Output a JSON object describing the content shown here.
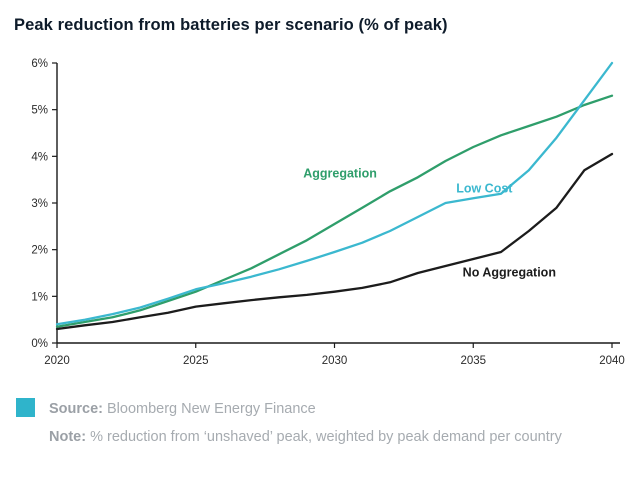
{
  "chart_data": {
    "type": "line",
    "title": "Peak reduction from batteries per scenario (% of peak)",
    "xlabel": "",
    "ylabel": "",
    "x": [
      2020,
      2021,
      2022,
      2023,
      2024,
      2025,
      2026,
      2027,
      2028,
      2029,
      2030,
      2031,
      2032,
      2033,
      2034,
      2035,
      2036,
      2037,
      2038,
      2039,
      2040
    ],
    "series": [
      {
        "name": "Aggregation",
        "color": "#2f9e6b",
        "values": [
          0.35,
          0.45,
          0.55,
          0.7,
          0.9,
          1.1,
          1.35,
          1.6,
          1.9,
          2.2,
          2.55,
          2.9,
          3.25,
          3.55,
          3.9,
          4.2,
          4.45,
          4.65,
          4.85,
          5.1,
          5.3
        ]
      },
      {
        "name": "Low Cost",
        "color": "#3bb8cf",
        "values": [
          0.4,
          0.5,
          0.62,
          0.76,
          0.95,
          1.15,
          1.28,
          1.42,
          1.58,
          1.76,
          1.95,
          2.15,
          2.4,
          2.7,
          3.0,
          3.1,
          3.2,
          3.7,
          4.4,
          5.2,
          6.0
        ]
      },
      {
        "name": "No Aggregation",
        "color": "#1c1c1c",
        "values": [
          0.3,
          0.38,
          0.45,
          0.55,
          0.65,
          0.78,
          0.85,
          0.92,
          0.98,
          1.03,
          1.1,
          1.18,
          1.3,
          1.5,
          1.65,
          1.8,
          1.95,
          2.4,
          2.9,
          3.7,
          4.05
        ]
      }
    ],
    "x_ticks": [
      2020,
      2025,
      2030,
      2035,
      2040
    ],
    "y_ticks": [
      "0%",
      "1%",
      "2%",
      "3%",
      "4%",
      "5%",
      "6%"
    ],
    "y_tick_values": [
      0,
      1,
      2,
      3,
      4,
      5,
      6
    ],
    "xlim": [
      2020,
      2040
    ],
    "ylim": [
      0,
      6
    ],
    "grid": false,
    "legend": "inline-labels",
    "series_label_anchors": {
      "Aggregation": {
        "x": 2030.2,
        "y": 3.55
      },
      "Low Cost": {
        "x": 2035.4,
        "y": 3.22
      },
      "No Aggregation": {
        "x": 2036.3,
        "y": 1.42
      }
    }
  },
  "footer": {
    "source_label": "Source:",
    "source_text": "Bloomberg New Energy Finance",
    "note_label": "Note:",
    "note_text": "% reduction from ‘unshaved’ peak, weighted by peak demand per country",
    "swatch_color": "#2fb4cb"
  },
  "colors": {
    "title": "#0e1b2a",
    "axis": "#1a1a1a",
    "tick_label": "#2b2b2b",
    "footer_text": "#a6abb0"
  }
}
